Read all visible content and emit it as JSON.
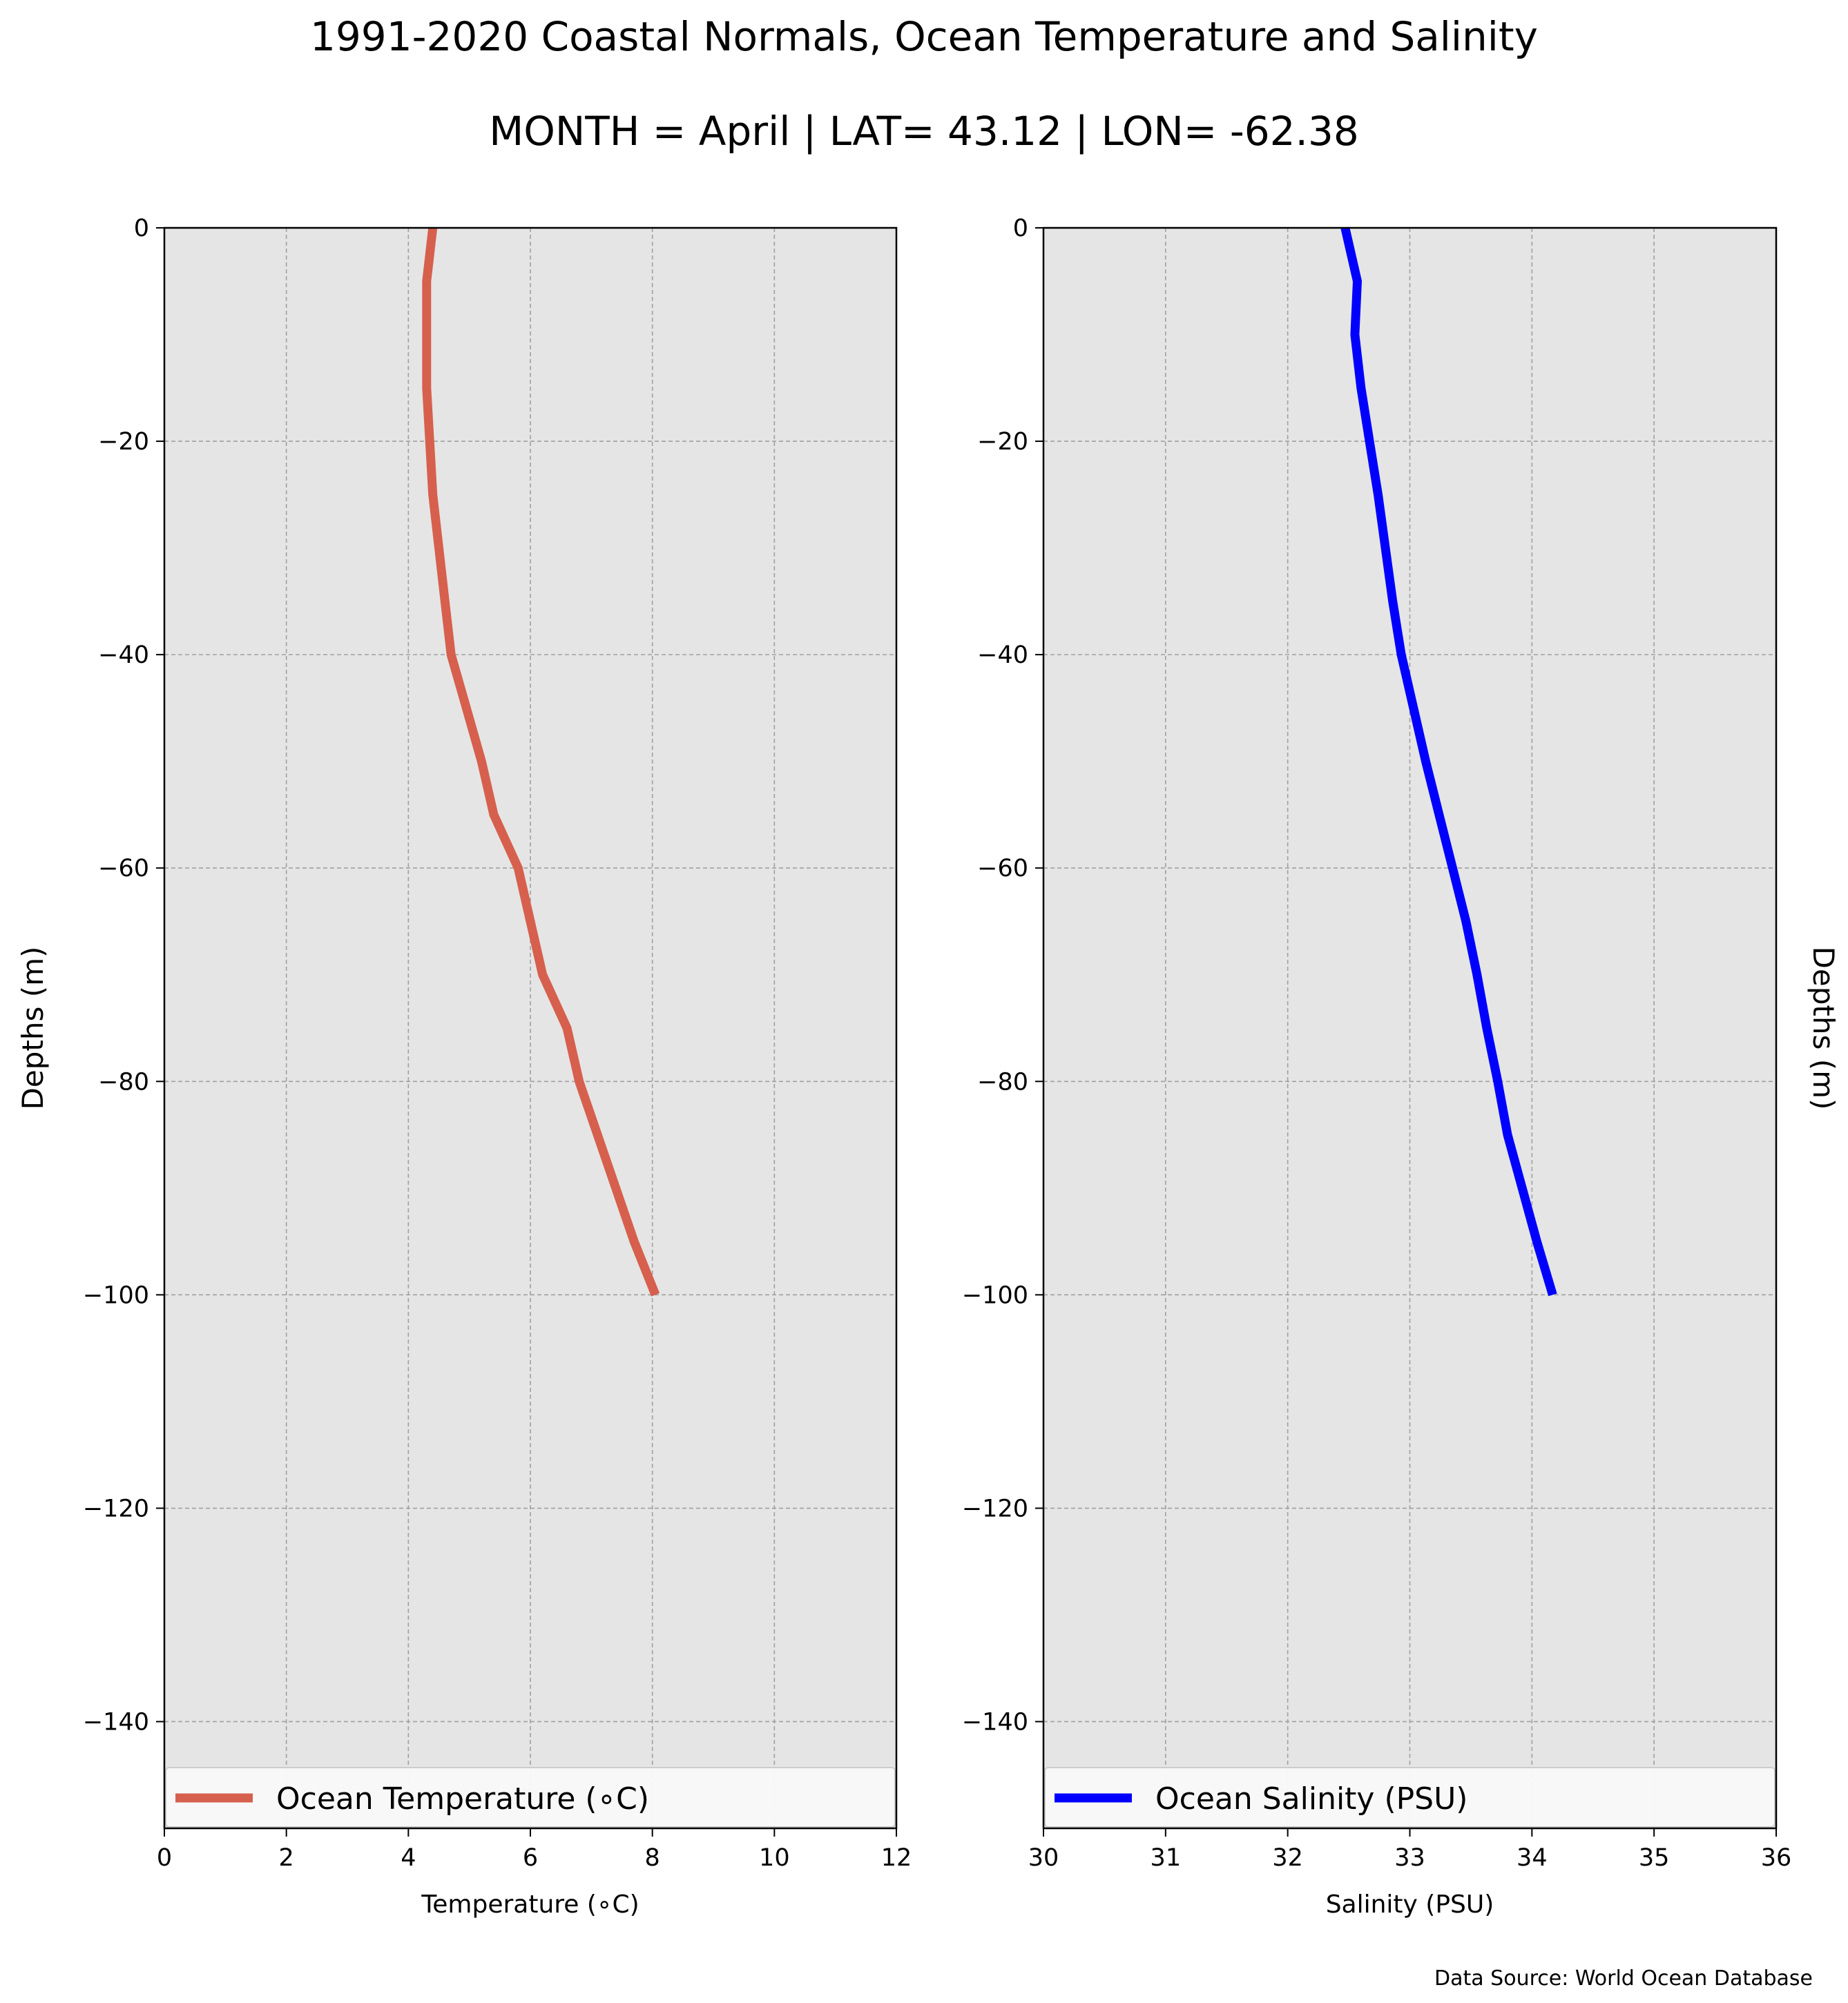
{
  "title": "1991-2020 Coastal Normals, Ocean Temperature and Salinity",
  "subtitle": "MONTH = April | LAT= 43.12 | LON= -62.38",
  "source_note": "Data Source: World Ocean Database",
  "colors": {
    "panel_background": "#e5e5e5",
    "grid": "#a0a0a0",
    "temperature_line": "#d6604d",
    "salinity_line": "#0000ff"
  },
  "chart_data": [
    {
      "type": "line",
      "xlabel": "Temperature ($^\\circ$C)",
      "xlabel_display": "Temperature (∘C)",
      "ylabel": "Depths (m)",
      "ylabel_side": "left",
      "xlim": [
        0,
        12
      ],
      "ylim": [
        -150,
        0
      ],
      "xticks": [
        0,
        2,
        4,
        6,
        8,
        10,
        12
      ],
      "yticks": [
        0,
        -20,
        -40,
        -60,
        -80,
        -100,
        -120,
        -140
      ],
      "xtick_labels": [
        "0",
        "2",
        "4",
        "6",
        "8",
        "10",
        "12"
      ],
      "ytick_labels": [
        "0",
        "−20",
        "−40",
        "−60",
        "−80",
        "−100",
        "−120",
        "−140"
      ],
      "grid": true,
      "legend_position": "bottom",
      "series": [
        {
          "name": "Ocean Temperature (∘C)",
          "color": "#d6604d",
          "points": [
            {
              "x": 4.4,
              "y": 0
            },
            {
              "x": 4.3,
              "y": -5
            },
            {
              "x": 4.3,
              "y": -10
            },
            {
              "x": 4.3,
              "y": -15
            },
            {
              "x": 4.4,
              "y": -25
            },
            {
              "x": 4.6,
              "y": -35
            },
            {
              "x": 4.7,
              "y": -40
            },
            {
              "x": 4.95,
              "y": -45
            },
            {
              "x": 5.2,
              "y": -50
            },
            {
              "x": 5.4,
              "y": -55
            },
            {
              "x": 5.8,
              "y": -60
            },
            {
              "x": 6.0,
              "y": -65
            },
            {
              "x": 6.2,
              "y": -70
            },
            {
              "x": 6.6,
              "y": -75
            },
            {
              "x": 6.8,
              "y": -80
            },
            {
              "x": 7.1,
              "y": -85
            },
            {
              "x": 7.4,
              "y": -90
            },
            {
              "x": 7.7,
              "y": -95
            },
            {
              "x": 8.05,
              "y": -100
            }
          ]
        }
      ]
    },
    {
      "type": "line",
      "xlabel": "Salinity (PSU)",
      "ylabel": "Depths (m)",
      "ylabel_side": "right",
      "xlim": [
        30,
        36
      ],
      "ylim": [
        -150,
        0
      ],
      "xticks": [
        30,
        31,
        32,
        33,
        34,
        35,
        36
      ],
      "yticks": [
        0,
        -20,
        -40,
        -60,
        -80,
        -100,
        -120,
        -140
      ],
      "xtick_labels": [
        "30",
        "31",
        "32",
        "33",
        "34",
        "35",
        "36"
      ],
      "ytick_labels": [
        "0",
        "−20",
        "−40",
        "−60",
        "−80",
        "−100",
        "−120",
        "−140"
      ],
      "grid": true,
      "legend_position": "bottom",
      "series": [
        {
          "name": "Ocean Salinity (PSU)",
          "color": "#0000ff",
          "points": [
            {
              "x": 32.47,
              "y": 0
            },
            {
              "x": 32.57,
              "y": -5
            },
            {
              "x": 32.55,
              "y": -10
            },
            {
              "x": 32.6,
              "y": -15
            },
            {
              "x": 32.67,
              "y": -20
            },
            {
              "x": 32.74,
              "y": -25
            },
            {
              "x": 32.8,
              "y": -30
            },
            {
              "x": 32.86,
              "y": -35
            },
            {
              "x": 32.93,
              "y": -40
            },
            {
              "x": 33.03,
              "y": -45
            },
            {
              "x": 33.13,
              "y": -50
            },
            {
              "x": 33.24,
              "y": -55
            },
            {
              "x": 33.35,
              "y": -60
            },
            {
              "x": 33.46,
              "y": -65
            },
            {
              "x": 33.55,
              "y": -70
            },
            {
              "x": 33.63,
              "y": -75
            },
            {
              "x": 33.72,
              "y": -80
            },
            {
              "x": 33.8,
              "y": -85
            },
            {
              "x": 33.92,
              "y": -90
            },
            {
              "x": 34.04,
              "y": -95
            },
            {
              "x": 34.17,
              "y": -100
            }
          ]
        }
      ]
    }
  ]
}
